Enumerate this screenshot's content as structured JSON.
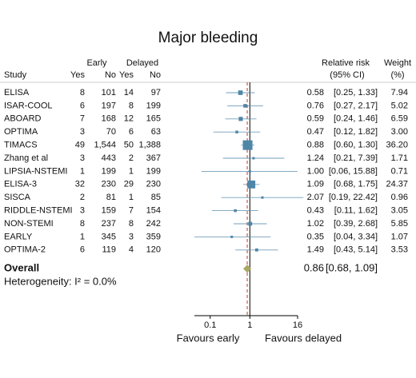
{
  "chart_data": {
    "type": "forest",
    "title": "Major bleeding",
    "group_headers": [
      "Early",
      "Delayed"
    ],
    "column_headers": [
      "Study",
      "Yes",
      "No",
      "Yes",
      "No"
    ],
    "effect_header": [
      "Relative risk",
      "(95% CI)"
    ],
    "weight_header": [
      "Weight",
      "(%)"
    ],
    "rows": [
      [
        "ELISA",
        "8",
        "101",
        "14",
        "97"
      ],
      [
        "ISAR-COOL",
        "6",
        "197",
        "8",
        "199"
      ],
      [
        "ABOARD",
        "7",
        "168",
        "12",
        "165"
      ],
      [
        "OPTIMA",
        "3",
        "70",
        "6",
        "63"
      ],
      [
        "TIMACS",
        "49",
        "1,544",
        "50",
        "1,388"
      ],
      [
        "Zhang et al",
        "3",
        "443",
        "2",
        "367"
      ],
      [
        "LIPSIA-NSTEMI",
        "1",
        "199",
        "1",
        "199"
      ],
      [
        "ELISA-3",
        "32",
        "230",
        "29",
        "230"
      ],
      [
        "SISCA",
        "2",
        "81",
        "1",
        "85"
      ],
      [
        "RIDDLE-NSTEMI",
        "3",
        "159",
        "7",
        "154"
      ],
      [
        "NON-STEMI",
        "8",
        "237",
        "8",
        "242"
      ],
      [
        "EARLY",
        "1",
        "345",
        "3",
        "359"
      ],
      [
        "OPTIMA-2",
        "6",
        "119",
        "4",
        "120"
      ]
    ],
    "values": [
      0.58,
      0.76,
      0.59,
      0.47,
      0.88,
      1.24,
      1.0,
      1.09,
      2.07,
      0.43,
      1.02,
      0.35,
      1.49
    ],
    "value_labels": [
      "0.58",
      "0.76",
      "0.59",
      "0.47",
      "0.88",
      "1.24",
      "1.00",
      "1.09",
      "2.07",
      "0.43",
      "1.02",
      "0.35",
      "1.49"
    ],
    "lower": [
      0.25,
      0.27,
      0.24,
      0.12,
      0.6,
      0.21,
      0.06,
      0.68,
      0.19,
      0.11,
      0.39,
      0.04,
      0.43
    ],
    "upper": [
      1.33,
      2.17,
      1.46,
      1.82,
      1.3,
      7.39,
      15.88,
      1.75,
      22.42,
      1.62,
      2.68,
      3.34,
      5.14
    ],
    "ci_labels": [
      "[0.25, 1.33]",
      "[0.27, 2.17]",
      "[0.24, 1.46]",
      "[0.12, 1.82]",
      "[0.60, 1.30]",
      "[0.21, 7.39]",
      "[0.06, 15.88]",
      "[0.68, 1.75]",
      "[0.19, 22.42]",
      "[0.11, 1.62]",
      "[0.39, 2.68]",
      "[0.04, 3.34]",
      "[0.43, 5.14]"
    ],
    "weights": [
      7.94,
      5.02,
      6.59,
      3.0,
      36.2,
      1.71,
      0.71,
      24.37,
      0.96,
      3.05,
      5.85,
      1.07,
      3.53
    ],
    "weight_labels": [
      "7.94",
      "5.02",
      "6.59",
      "3.00",
      "36.20",
      "1.71",
      "0.71",
      "24.37",
      "0.96",
      "3.05",
      "5.85",
      "1.07",
      "3.53"
    ],
    "overall": {
      "label": "Overall",
      "value": 0.86,
      "value_label": "0.86",
      "lower": 0.68,
      "upper": 1.09,
      "ci_label": "[0.68, 1.09]"
    },
    "heterogeneity": "Heterogeneity: I² = 0.0%",
    "xscale": "log",
    "xlim": [
      0.04,
      16
    ],
    "xticks": [
      0.1,
      1,
      16
    ],
    "null_value": 1,
    "x_labels": [
      "Favours early",
      "Favours delayed"
    ],
    "color": "#4f86a8",
    "diamond_color": "#a9a864"
  }
}
